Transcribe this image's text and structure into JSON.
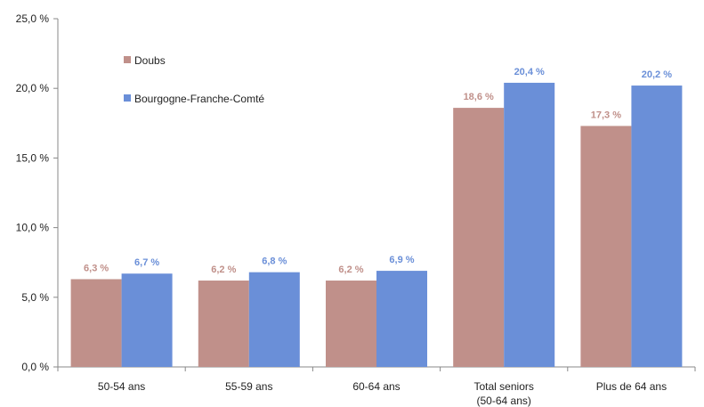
{
  "chart_data": {
    "type": "bar",
    "title": "",
    "xlabel": "",
    "ylabel": "",
    "ylim": [
      0,
      25
    ],
    "ytick_step": 5,
    "ytick_labels": [
      "0,0 %",
      "5,0 %",
      "10,0 %",
      "15,0 %",
      "20,0 %",
      "25,0 %"
    ],
    "grid": false,
    "legend_position": "top-left",
    "categories": [
      [
        "50-54 ans"
      ],
      [
        "55-59 ans"
      ],
      [
        "60-64 ans"
      ],
      [
        "Total seniors",
        "(50-64 ans)"
      ],
      [
        "Plus de 64 ans"
      ]
    ],
    "series": [
      {
        "name": "Doubs",
        "color": "#c0908a",
        "values": [
          6.3,
          6.2,
          6.2,
          18.6,
          17.3
        ],
        "labels": [
          "6,3 %",
          "6,2 %",
          "6,2 %",
          "18,6 %",
          "17,3 %"
        ]
      },
      {
        "name": "Bourgogne-Franche-Comté",
        "color": "#6a8fd8",
        "values": [
          6.7,
          6.8,
          6.9,
          20.4,
          20.2
        ],
        "labels": [
          "6,7 %",
          "6,8 %",
          "6,9 %",
          "20,4 %",
          "20,2 %"
        ]
      }
    ]
  }
}
